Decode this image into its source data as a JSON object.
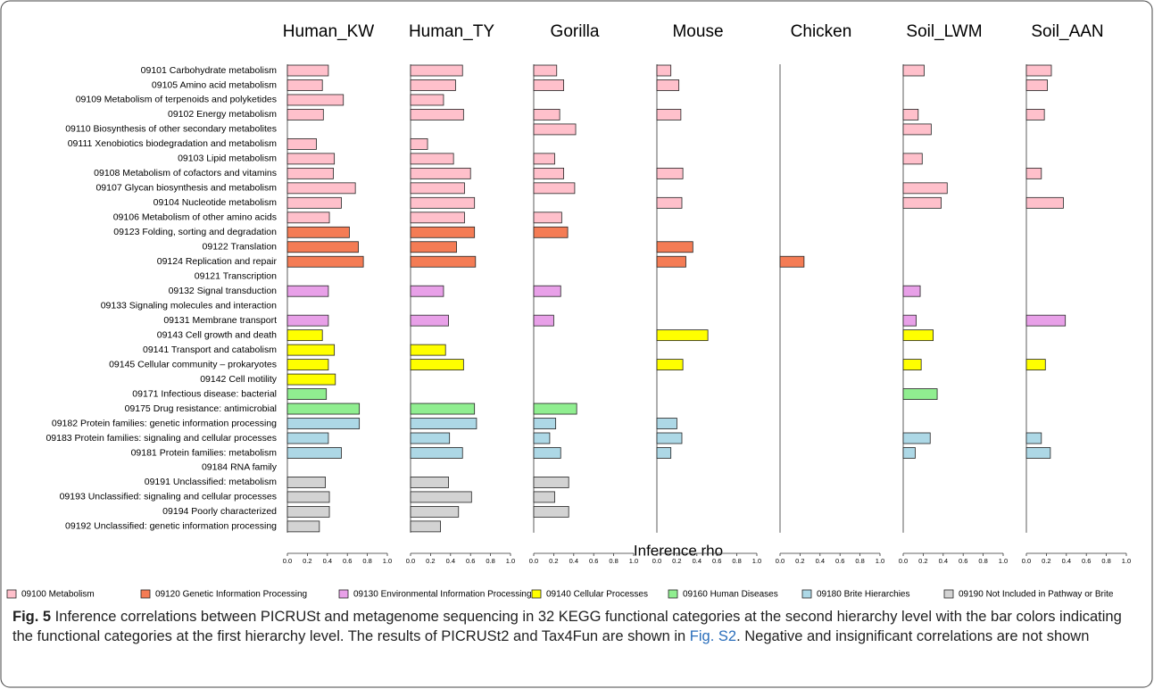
{
  "chart_data": {
    "type": "bar",
    "orientation": "horizontal",
    "x_label": "Inference rho",
    "xlim": [
      0,
      1
    ],
    "xticks": [
      {
        "value": 0,
        "label": "0.0"
      },
      {
        "value": 0.2,
        "label": "0.2"
      },
      {
        "value": 0.4,
        "label": "0.4"
      },
      {
        "value": 0.6,
        "label": "0.6"
      },
      {
        "value": 0.8,
        "label": "0.8"
      },
      {
        "value": 1,
        "label": "1.0"
      }
    ],
    "groups": [
      {
        "name": "09100 Metabolism",
        "color": "#ffc0cb"
      },
      {
        "name": "09120 Genetic Information Processing",
        "color": "#f47c55"
      },
      {
        "name": "09130 Environmental Information Processing",
        "color": "#e8a0e8"
      },
      {
        "name": "09140 Cellular Processes",
        "color": "#ffff00"
      },
      {
        "name": "09160 Human Diseases",
        "color": "#90ee90"
      },
      {
        "name": "09180 Brite Hierarchies",
        "color": "#add8e6"
      },
      {
        "name": "09190 Not Included in Pathway or Brite",
        "color": "#d3d3d3"
      }
    ],
    "categories": [
      "09101 Carbohydrate metabolism",
      "09105 Amino acid metabolism",
      "09109 Metabolism of terpenoids and polyketides",
      "09102 Energy metabolism",
      "09110 Biosynthesis of other secondary metabolites",
      "09111 Xenobiotics biodegradation and metabolism",
      "09103 Lipid metabolism",
      "09108 Metabolism of cofactors and vitamins",
      "09107 Glycan biosynthesis and metabolism",
      "09104 Nucleotide metabolism",
      "09106 Metabolism of other amino acids",
      "09123 Folding, sorting and degradation",
      "09122 Translation",
      "09124 Replication and repair",
      "09121 Transcription",
      "09132 Signal transduction",
      "09133 Signaling molecules and interaction",
      "09131 Membrane transport",
      "09143 Cell growth and death",
      "09141 Transport and catabolism",
      "09145 Cellular community – prokaryotes",
      "09142 Cell motility",
      "09171 Infectious disease: bacterial",
      "09175 Drug resistance: antimicrobial",
      "09182 Protein families: genetic information processing",
      "09183 Protein families: signaling and cellular processes",
      "09181 Protein families: metabolism",
      "09184 RNA family",
      "09191 Unclassified: metabolism",
      "09193 Unclassified: signaling and cellular processes",
      "09194 Poorly characterized",
      "09192 Unclassified: genetic information processing"
    ],
    "category_group": [
      0,
      0,
      0,
      0,
      0,
      0,
      0,
      0,
      0,
      0,
      0,
      1,
      1,
      1,
      1,
      2,
      2,
      2,
      3,
      3,
      3,
      3,
      4,
      4,
      5,
      5,
      5,
      5,
      6,
      6,
      6,
      6
    ],
    "panels": [
      {
        "name": "Human_KW",
        "values": [
          0.41,
          0.35,
          0.56,
          0.36,
          null,
          0.29,
          0.47,
          0.46,
          0.68,
          0.54,
          0.42,
          0.62,
          0.71,
          0.76,
          null,
          0.41,
          null,
          0.41,
          0.35,
          0.47,
          0.41,
          0.48,
          0.39,
          0.72,
          0.72,
          0.41,
          0.54,
          null,
          0.38,
          0.42,
          0.42,
          0.32
        ]
      },
      {
        "name": "Human_TY",
        "values": [
          0.52,
          0.45,
          0.33,
          0.53,
          null,
          0.17,
          0.43,
          0.6,
          0.54,
          0.64,
          0.54,
          0.64,
          0.46,
          0.65,
          null,
          0.33,
          null,
          0.38,
          null,
          0.35,
          0.53,
          null,
          null,
          0.64,
          0.66,
          0.39,
          0.52,
          null,
          0.38,
          0.61,
          0.48,
          0.3
        ]
      },
      {
        "name": "Gorilla",
        "values": [
          0.23,
          0.3,
          null,
          0.26,
          0.42,
          null,
          0.21,
          0.3,
          0.41,
          null,
          0.28,
          0.34,
          null,
          null,
          null,
          0.27,
          null,
          0.2,
          null,
          null,
          null,
          null,
          null,
          0.43,
          0.22,
          0.16,
          0.27,
          null,
          0.35,
          0.21,
          0.35,
          null
        ]
      },
      {
        "name": "Mouse",
        "values": [
          0.14,
          0.22,
          null,
          0.24,
          null,
          null,
          null,
          0.26,
          null,
          0.25,
          null,
          null,
          0.36,
          0.29,
          null,
          null,
          null,
          null,
          0.51,
          null,
          0.26,
          null,
          null,
          null,
          0.2,
          0.25,
          0.14,
          null,
          null,
          null,
          null,
          null
        ]
      },
      {
        "name": "Chicken",
        "values": [
          null,
          null,
          null,
          null,
          null,
          null,
          null,
          null,
          null,
          null,
          null,
          null,
          null,
          0.24,
          null,
          null,
          null,
          null,
          null,
          null,
          null,
          null,
          null,
          null,
          null,
          null,
          null,
          null,
          null,
          null,
          null,
          null
        ]
      },
      {
        "name": "Soil_LWM",
        "values": [
          0.21,
          null,
          null,
          0.15,
          0.28,
          null,
          0.19,
          null,
          0.44,
          0.38,
          null,
          null,
          null,
          null,
          null,
          0.17,
          null,
          0.13,
          0.3,
          null,
          0.18,
          null,
          0.34,
          null,
          null,
          0.27,
          0.12,
          null,
          null,
          null,
          null,
          null
        ]
      },
      {
        "name": "Soil_AAN",
        "values": [
          0.25,
          0.21,
          null,
          0.18,
          null,
          null,
          null,
          0.15,
          null,
          0.37,
          null,
          null,
          null,
          null,
          null,
          null,
          null,
          0.39,
          null,
          null,
          0.19,
          null,
          null,
          null,
          null,
          0.15,
          0.24,
          null,
          null,
          null,
          null,
          null
        ]
      }
    ]
  },
  "caption": {
    "label": "Fig. 5",
    "text": " Inference correlations between PICRUSt and metagenome sequencing in 32 KEGG functional categories at the second hierarchy level with the bar colors indicating the functional categories at the first hierarchy level. The results of PICRUSt2 and Tax4Fun are shown in ",
    "link": "Fig. S2",
    "text_end": ". Negative and insignificant correlations are not shown"
  }
}
